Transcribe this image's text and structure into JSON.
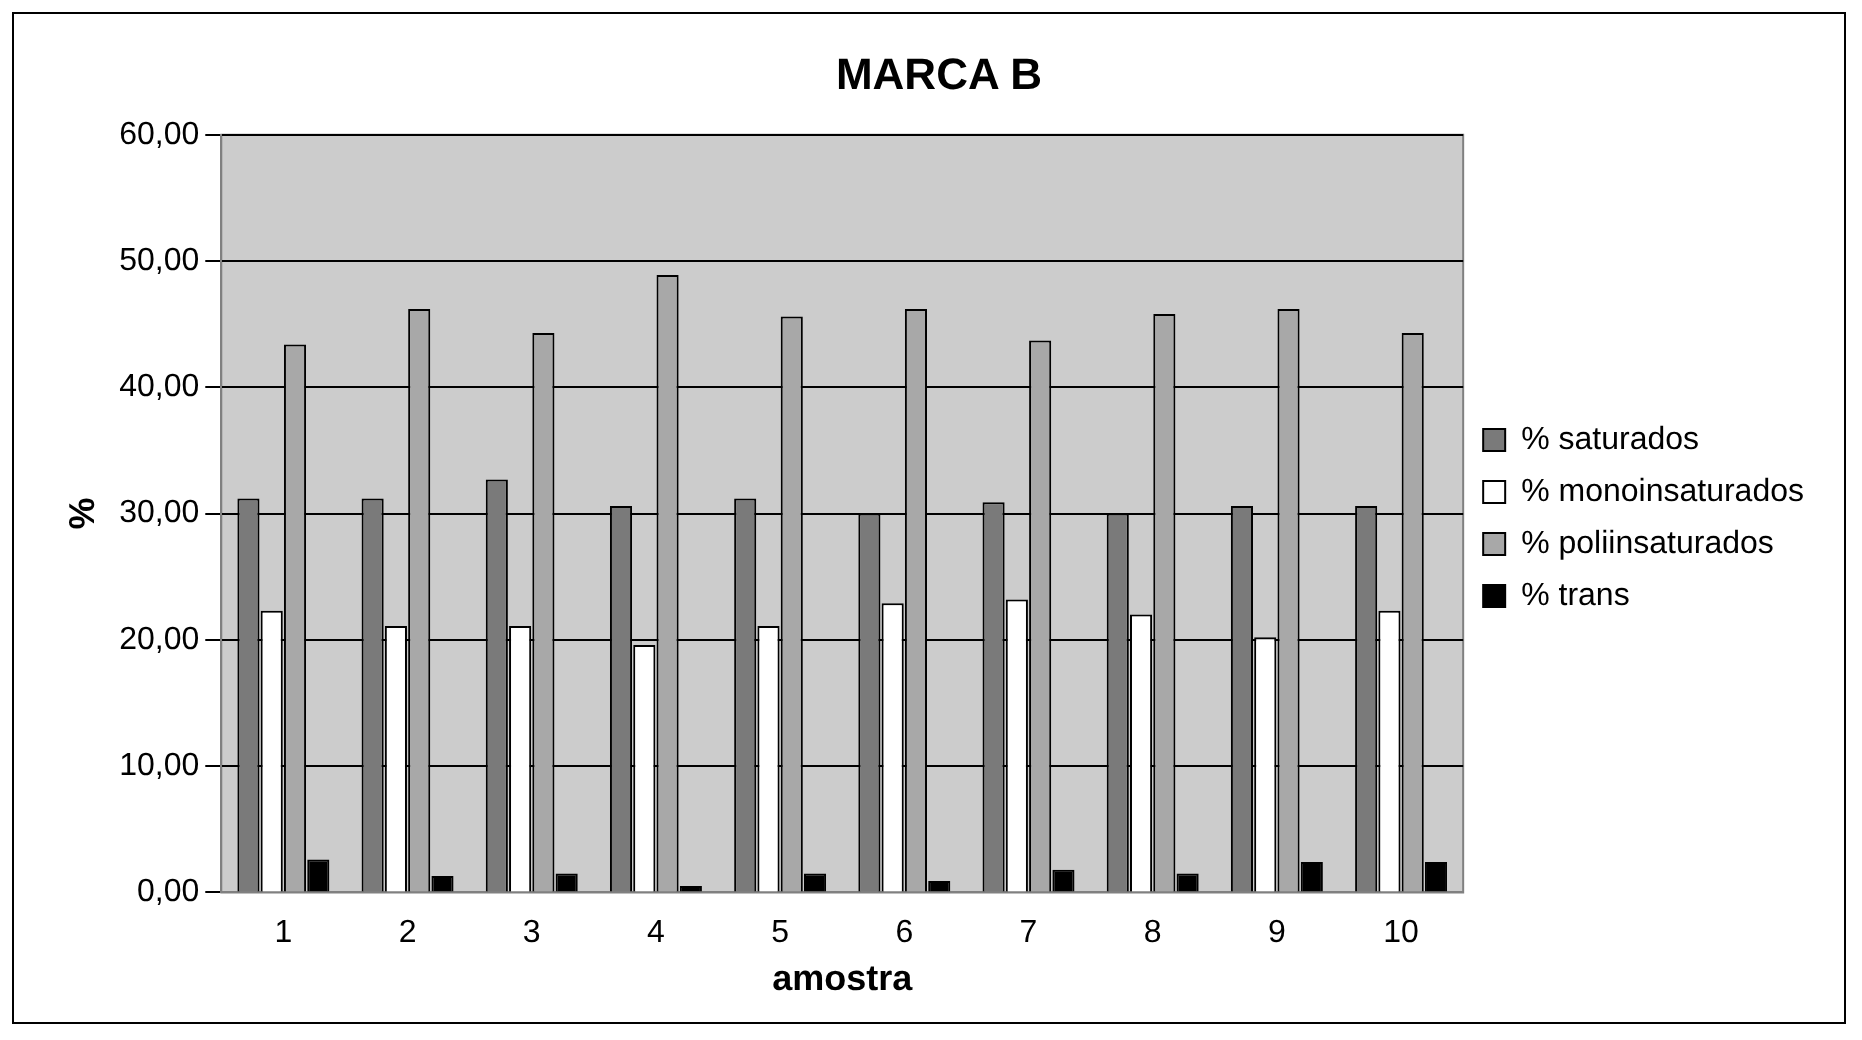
{
  "chart_data": {
    "type": "bar",
    "title": "MARCA B",
    "xlabel": "amostra",
    "ylabel": "%",
    "categories": [
      "1",
      "2",
      "3",
      "4",
      "5",
      "6",
      "7",
      "8",
      "9",
      "10"
    ],
    "series": [
      {
        "name": "% saturados",
        "color": "#7a7a7a",
        "values": [
          31.2,
          31.2,
          32.7,
          30.6,
          31.2,
          30.0,
          30.9,
          30.0,
          30.6,
          30.6
        ]
      },
      {
        "name": "% monoinsaturados",
        "color": "#ffffff",
        "values": [
          22.3,
          21.1,
          21.1,
          19.6,
          21.1,
          22.9,
          23.2,
          22.0,
          20.2,
          22.3
        ]
      },
      {
        "name": "% poliinsaturados",
        "color": "#a8a8a8",
        "values": [
          43.4,
          46.2,
          44.3,
          48.9,
          45.6,
          46.2,
          43.7,
          45.8,
          46.2,
          44.3
        ]
      },
      {
        "name": "% trans",
        "color": "#000000",
        "values": [
          2.6,
          1.3,
          1.5,
          0.5,
          1.5,
          0.9,
          1.8,
          1.5,
          2.4,
          2.4
        ]
      }
    ],
    "ylim": [
      0,
      60
    ],
    "yticks": [
      {
        "value": 0,
        "label": "0,00"
      },
      {
        "value": 10,
        "label": "10,00"
      },
      {
        "value": 20,
        "label": "20,00"
      },
      {
        "value": 30,
        "label": "30,00"
      },
      {
        "value": 40,
        "label": "40,00"
      },
      {
        "value": 50,
        "label": "50,00"
      },
      {
        "value": 60,
        "label": "60,00"
      }
    ],
    "grid": "y",
    "legend": "right"
  }
}
